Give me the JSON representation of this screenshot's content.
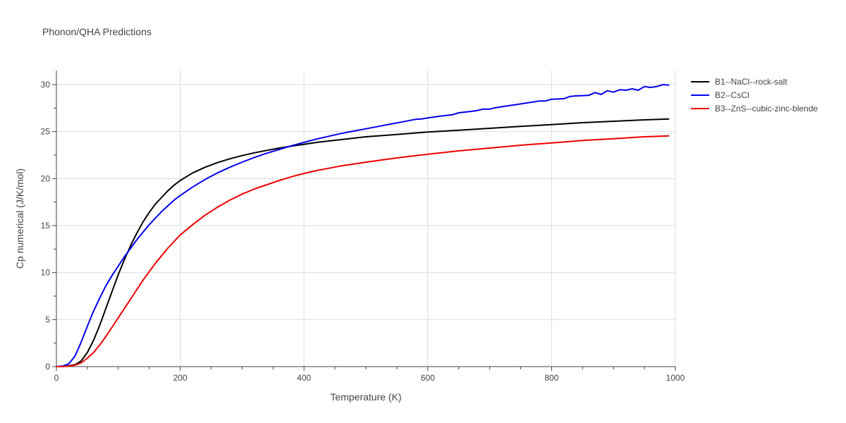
{
  "chart_data": {
    "type": "line",
    "title": "Phonon/QHA Predictions",
    "xlabel": "Temperature (K)",
    "ylabel": "Cp numerical (J/K/mol)",
    "xlim": [
      0,
      1000
    ],
    "ylim": [
      0,
      31.5
    ],
    "x_ticks": [
      0,
      200,
      400,
      600,
      800,
      1000
    ],
    "y_ticks": [
      0,
      5,
      10,
      15,
      20,
      25,
      30
    ],
    "grid": true,
    "legend_position": "top-right, outside plot",
    "series": [
      {
        "name": "B1--NaCl--rock-salt",
        "color": "#000000",
        "x": [
          0,
          10,
          20,
          30,
          40,
          50,
          60,
          70,
          80,
          90,
          100,
          110,
          120,
          130,
          140,
          150,
          160,
          170,
          180,
          190,
          200,
          220,
          240,
          260,
          280,
          300,
          320,
          340,
          360,
          380,
          400,
          420,
          440,
          460,
          480,
          500,
          550,
          600,
          650,
          700,
          750,
          800,
          850,
          900,
          950,
          990
        ],
        "y": [
          0,
          0.01,
          0.1,
          0.2,
          0.6,
          1.5,
          2.8,
          4.4,
          6.2,
          8.0,
          9.8,
          11.4,
          12.9,
          14.2,
          15.4,
          16.4,
          17.3,
          18.0,
          18.7,
          19.3,
          19.8,
          20.6,
          21.2,
          21.7,
          22.1,
          22.45,
          22.75,
          23.0,
          23.25,
          23.45,
          23.65,
          23.85,
          24.0,
          24.15,
          24.3,
          24.45,
          24.7,
          24.95,
          25.15,
          25.35,
          25.55,
          25.75,
          25.95,
          26.1,
          26.25,
          26.35
        ]
      },
      {
        "name": "B2--CsCl",
        "color": "#0000ee",
        "x": [
          0,
          10,
          20,
          30,
          40,
          50,
          60,
          70,
          80,
          90,
          100,
          110,
          120,
          130,
          140,
          150,
          160,
          170,
          180,
          190,
          200,
          220,
          240,
          260,
          280,
          300,
          320,
          340,
          360,
          380,
          400,
          420,
          440,
          460,
          480,
          500,
          520,
          540,
          560,
          580,
          590,
          600,
          620,
          640,
          650,
          670,
          680,
          690,
          700,
          710,
          720,
          740,
          760,
          780,
          790,
          800,
          820,
          830,
          840,
          860,
          870,
          880,
          890,
          900,
          910,
          920,
          930,
          940,
          950,
          960,
          970,
          980,
          990
        ],
        "y": [
          0,
          0.05,
          0.3,
          1.1,
          2.6,
          4.3,
          5.9,
          7.3,
          8.6,
          9.7,
          10.7,
          11.7,
          12.6,
          13.5,
          14.3,
          15.1,
          15.8,
          16.5,
          17.1,
          17.7,
          18.2,
          19.1,
          19.9,
          20.6,
          21.2,
          21.75,
          22.25,
          22.7,
          23.1,
          23.5,
          23.85,
          24.2,
          24.5,
          24.8,
          25.05,
          25.3,
          25.55,
          25.8,
          26.05,
          26.3,
          26.35,
          26.45,
          26.65,
          26.8,
          27.0,
          27.15,
          27.25,
          27.4,
          27.4,
          27.55,
          27.65,
          27.85,
          28.05,
          28.25,
          28.25,
          28.45,
          28.5,
          28.75,
          28.8,
          28.85,
          29.15,
          28.95,
          29.35,
          29.2,
          29.45,
          29.4,
          29.55,
          29.4,
          29.8,
          29.7,
          29.8,
          30.0,
          29.95
        ]
      },
      {
        "name": "B3--ZnS--cubic-zinc-blende",
        "color": "#ee0000",
        "x": [
          0,
          10,
          20,
          30,
          40,
          50,
          60,
          70,
          80,
          90,
          100,
          110,
          120,
          130,
          140,
          150,
          160,
          170,
          180,
          190,
          200,
          220,
          240,
          260,
          280,
          300,
          320,
          340,
          360,
          380,
          400,
          420,
          440,
          460,
          480,
          500,
          550,
          600,
          650,
          700,
          750,
          800,
          850,
          900,
          950,
          990
        ],
        "y": [
          0,
          0.01,
          0.05,
          0.15,
          0.4,
          0.9,
          1.5,
          2.3,
          3.2,
          4.2,
          5.2,
          6.2,
          7.2,
          8.2,
          9.2,
          10.1,
          11.0,
          11.8,
          12.6,
          13.3,
          14.0,
          15.1,
          16.1,
          16.95,
          17.7,
          18.35,
          18.9,
          19.35,
          19.8,
          20.2,
          20.55,
          20.85,
          21.1,
          21.35,
          21.55,
          21.75,
          22.2,
          22.6,
          22.95,
          23.25,
          23.55,
          23.8,
          24.05,
          24.25,
          24.45,
          24.55
        ]
      }
    ]
  }
}
